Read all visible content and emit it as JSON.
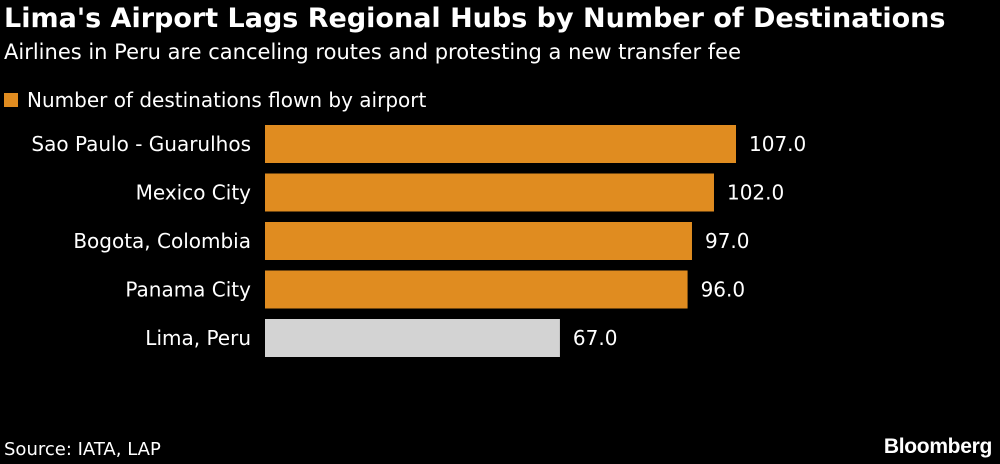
{
  "title": "Lima's Airport Lags Regional Hubs by Number of Destinations",
  "subtitle": "Airlines in Peru are canceling routes and protesting a new transfer fee",
  "source": "Source: IATA, LAP",
  "logo": "Bloomberg",
  "colors": {
    "primary": "#e08c20",
    "highlight": "#d3d3d3",
    "background": "#000000",
    "text": "#ffffff"
  },
  "chart_data": {
    "type": "bar",
    "orientation": "horizontal",
    "categories": [
      "Sao Paulo - Guarulhos",
      "Mexico City",
      "Bogota, Colombia",
      "Panama City",
      "Lima, Peru"
    ],
    "series": [
      {
        "name": "Number of destinations flown by airport",
        "values": [
          107.0,
          102.0,
          97.0,
          96.0,
          67.0
        ]
      }
    ],
    "value_labels": [
      "107.0",
      "102.0",
      "97.0",
      "96.0",
      "67.0"
    ],
    "highlighted_category": "Lima, Peru",
    "xlim": [
      0,
      107
    ],
    "grid": false,
    "legend_position": "top-left"
  }
}
